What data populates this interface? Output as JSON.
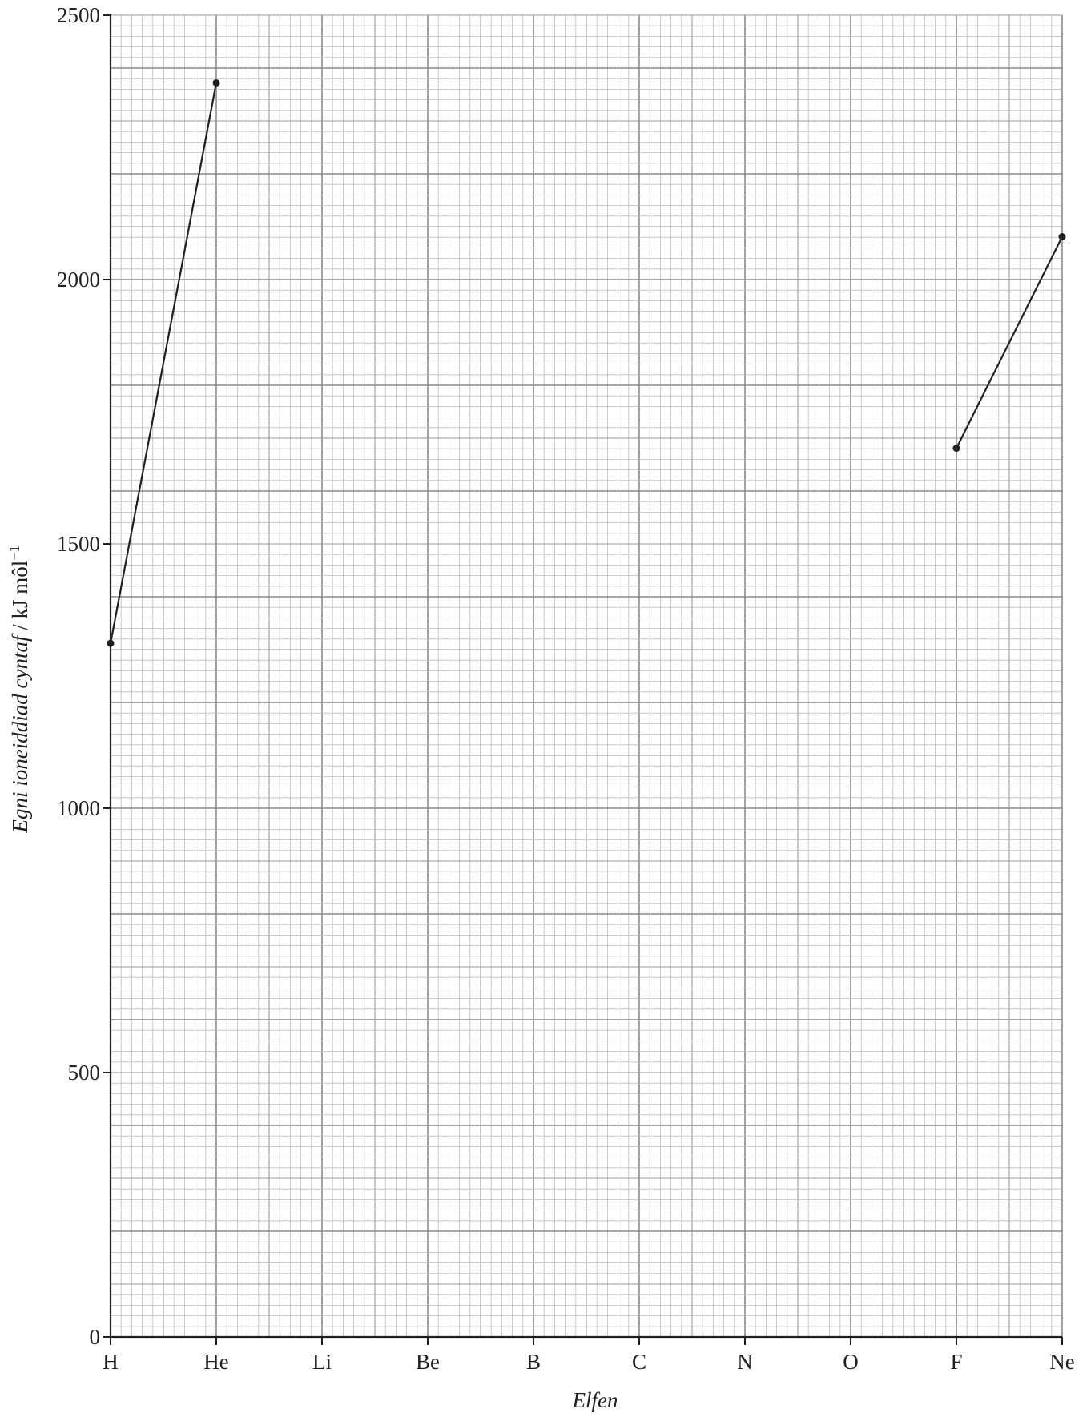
{
  "chart_data": {
    "type": "line",
    "title": "",
    "xlabel": "Elfen",
    "ylabel": {
      "italic_part": "Egni ioneiddiad cyntaf",
      "unit_part": " / kJ môl",
      "superscript": "−1"
    },
    "categories": [
      "H",
      "He",
      "Li",
      "Be",
      "B",
      "C",
      "N",
      "O",
      "F",
      "Ne"
    ],
    "ylim": [
      0,
      2500
    ],
    "yticks": [
      0,
      500,
      1000,
      1500,
      2000,
      2500
    ],
    "grid": true,
    "series": [
      {
        "segments": [
          [
            {
              "x": "H",
              "y": 1312
            },
            {
              "x": "He",
              "y": 2372
            }
          ],
          [
            {
              "x": "F",
              "y": 1681
            },
            {
              "x": "Ne",
              "y": 2081
            }
          ]
        ]
      }
    ]
  },
  "colors": {
    "minor_grid": "#bcbcbc",
    "medium_grid": "#9a9a9a",
    "major_grid": "#8a8a8a",
    "axis": "#231f20",
    "line": "#231f20"
  }
}
